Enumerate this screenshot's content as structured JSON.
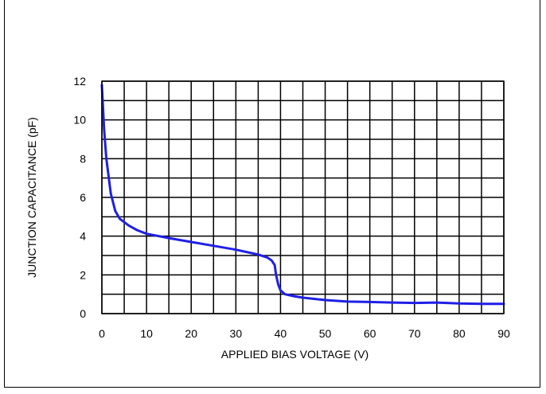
{
  "chart_data": {
    "type": "line",
    "xlabel": "APPLIED BIAS VOLTAGE (V)",
    "ylabel": "JUNCTION CAPACITANCE (pF)",
    "xlim": [
      0,
      90
    ],
    "ylim": [
      0,
      12
    ],
    "x_ticks": [
      0,
      10,
      20,
      30,
      40,
      50,
      60,
      70,
      80,
      90
    ],
    "y_ticks": [
      0,
      2,
      4,
      6,
      8,
      10,
      12
    ],
    "grid": {
      "x_step": 5,
      "y_step": 1
    },
    "series": [
      {
        "color": "#1f1fe6",
        "x": [
          0,
          0.5,
          1,
          2,
          3,
          4,
          6,
          8,
          10,
          15,
          20,
          25,
          30,
          33,
          35,
          37,
          38,
          38.7,
          39,
          39.5,
          40,
          41,
          43,
          45,
          50,
          55,
          60,
          65,
          70,
          75,
          80,
          85,
          90
        ],
        "y": [
          11.8,
          9.5,
          8.0,
          6.2,
          5.3,
          4.9,
          4.55,
          4.3,
          4.12,
          3.9,
          3.7,
          3.5,
          3.3,
          3.15,
          3.05,
          2.9,
          2.75,
          2.5,
          2.0,
          1.5,
          1.2,
          1.0,
          0.9,
          0.82,
          0.7,
          0.62,
          0.6,
          0.57,
          0.55,
          0.57,
          0.52,
          0.5,
          0.5
        ]
      }
    ]
  }
}
